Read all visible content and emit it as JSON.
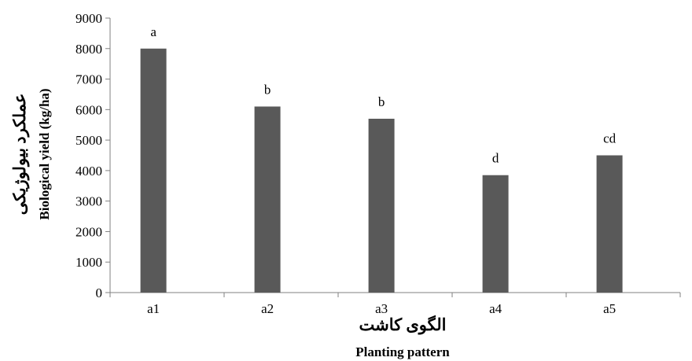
{
  "chart_data": {
    "type": "bar",
    "categories": [
      "a1",
      "a2",
      "a3",
      "a4",
      "a5"
    ],
    "values": [
      8000,
      6100,
      5700,
      3850,
      4500
    ],
    "data_labels": [
      "a",
      "b",
      "b",
      "d",
      "cd"
    ],
    "xlabel": "Planting pattern",
    "xlabel_fa": "الگوی کاشت",
    "ylabel": "Biological yield (kg/ha)",
    "ylabel_fa": "عملکرد بیولوژیکی",
    "ylim": [
      0,
      9000
    ],
    "yticks": [
      0,
      1000,
      2000,
      3000,
      4000,
      5000,
      6000,
      7000,
      8000,
      9000
    ],
    "grid": false,
    "bar_color": "#595959"
  }
}
